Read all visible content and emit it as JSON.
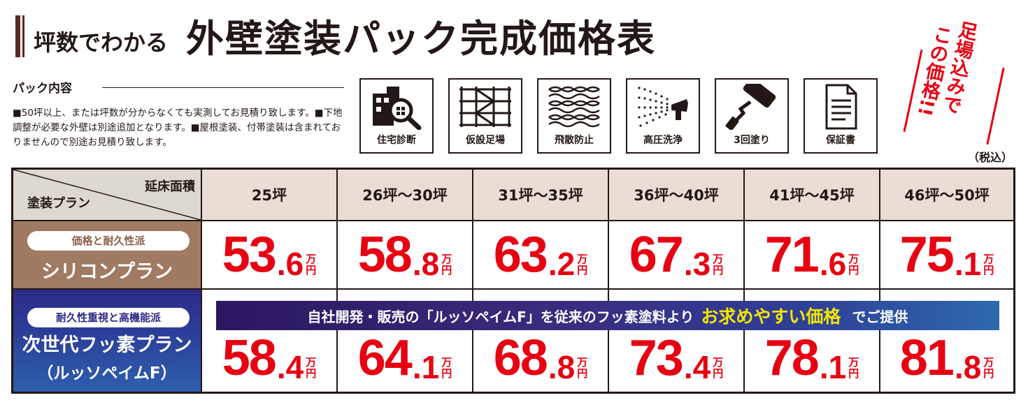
{
  "header": {
    "subtitle": "坪数でわかる",
    "title": "外壁塗装パック完成価格表",
    "stamp_line1": "足場込みで",
    "stamp_line2": "この価格!!"
  },
  "pack": {
    "label": "パック内容",
    "description": "■50坪以上、または坪数が分からなくても実測してお見積り致します。■下地調整が必要な外壁は別途追加となります。■屋根塗装、付帯塗装は含まれておりませんので別途お見積り致します。",
    "items": [
      {
        "label": "住宅診断",
        "icon": "house-magnifier-icon"
      },
      {
        "label": "仮設足場",
        "icon": "scaffold-icon"
      },
      {
        "label": "飛散防止",
        "icon": "mesh-net-icon"
      },
      {
        "label": "高圧洗浄",
        "icon": "pressure-washer-icon"
      },
      {
        "label": "3回塗り",
        "icon": "paint-roller-icon"
      },
      {
        "label": "保証書",
        "icon": "document-icon"
      }
    ]
  },
  "tax_note": "（税込）",
  "table": {
    "corner_top": "延床面積",
    "corner_bottom": "塗装プラン",
    "columns": [
      "25坪",
      "26坪～30坪",
      "31坪～35坪",
      "36坪～40坪",
      "41坪～45坪",
      "46坪～50坪"
    ],
    "unit_top": "万",
    "unit_bottom": "円",
    "plans": [
      {
        "tag": "価格と耐久性派",
        "name": "シリコンプラン",
        "name2": "",
        "prices": [
          [
            "53",
            ".6"
          ],
          [
            "58",
            ".8"
          ],
          [
            "63",
            ".2"
          ],
          [
            "67",
            ".3"
          ],
          [
            "71",
            ".6"
          ],
          [
            "75",
            ".1"
          ]
        ]
      },
      {
        "tag": "耐久性重視と高機能派",
        "name": "次世代フッ素プラン",
        "name2": "（ルッソペイムF）",
        "prices": [
          [
            "58",
            ".4"
          ],
          [
            "64",
            ".1"
          ],
          [
            "68",
            ".8"
          ],
          [
            "73",
            ".4"
          ],
          [
            "78",
            ".1"
          ],
          [
            "81",
            ".8"
          ]
        ]
      }
    ],
    "banner": {
      "lead": "自社開発・販売の「ルッソペイムF」を従来のフッ素塗料より",
      "highlight": "お求めやすい価格",
      "tail": "でご提供"
    }
  },
  "colors": {
    "price_red": "#e60012",
    "silicon_brown": "#a07a63",
    "fluoro_navy": "#2c2a86",
    "highlight_yellow": "#f2e600"
  }
}
